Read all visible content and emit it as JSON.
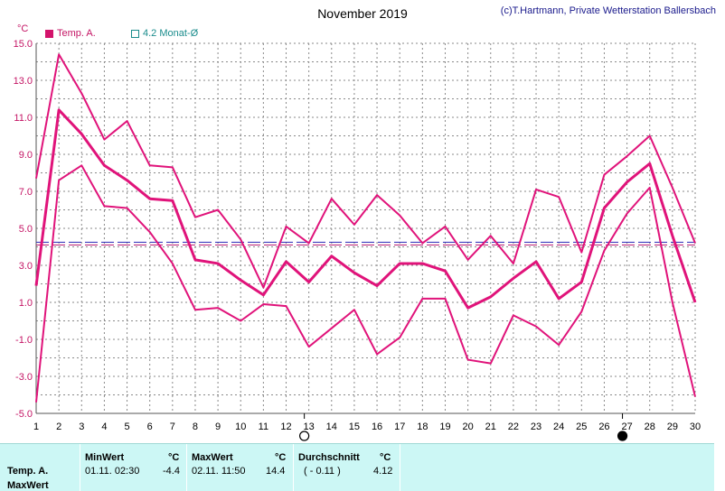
{
  "chart_data": {
    "type": "line",
    "title": "November 2019",
    "credit": "(c)T.Hartmann, Private Wetterstation Ballersbach",
    "ylabel": "°C",
    "ylim": [
      -5.0,
      15.0
    ],
    "yticks": [
      "-5.0",
      "-3.0",
      "-1.0",
      "1.0",
      "3.0",
      "5.0",
      "7.0",
      "9.0",
      "11.0",
      "13.0",
      "15.0"
    ],
    "x": [
      1,
      2,
      3,
      4,
      5,
      6,
      7,
      8,
      9,
      10,
      11,
      12,
      13,
      14,
      15,
      16,
      17,
      18,
      19,
      20,
      21,
      22,
      23,
      24,
      25,
      26,
      27,
      28,
      29,
      30
    ],
    "xticks": [
      "1",
      "2",
      "3",
      "4",
      "5",
      "6",
      "7",
      "8",
      "9",
      "10",
      "11",
      "12",
      "13",
      "14",
      "15",
      "16",
      "17",
      "18",
      "19",
      "20",
      "21",
      "22",
      "23",
      "24",
      "25",
      "26",
      "27",
      "28",
      "29",
      "30"
    ],
    "grid": true,
    "series": [
      {
        "name": "Temp. A.",
        "role": "max",
        "color": "#e0137a",
        "values": [
          7.7,
          14.4,
          12.3,
          9.8,
          10.8,
          8.4,
          8.3,
          5.6,
          6.0,
          4.4,
          1.8,
          5.1,
          4.2,
          6.6,
          5.2,
          6.8,
          5.7,
          4.2,
          5.1,
          3.3,
          4.6,
          3.1,
          7.1,
          6.7,
          3.7,
          7.9,
          8.9,
          10.0,
          7.2,
          4.2
        ]
      },
      {
        "name": "Temp. A.",
        "role": "avg",
        "color": "#e0137a",
        "values": [
          1.9,
          11.4,
          10.1,
          8.4,
          7.6,
          6.6,
          6.5,
          3.3,
          3.1,
          2.2,
          1.4,
          3.2,
          2.1,
          3.5,
          2.6,
          1.9,
          3.1,
          3.1,
          2.7,
          0.7,
          1.3,
          2.3,
          3.2,
          1.2,
          2.1,
          6.1,
          7.5,
          8.5,
          4.6,
          1.0
        ]
      },
      {
        "name": "Temp. A.",
        "role": "min",
        "color": "#e0137a",
        "values": [
          -4.4,
          7.6,
          8.4,
          6.2,
          6.1,
          4.8,
          3.1,
          0.6,
          0.7,
          0.0,
          0.9,
          0.8,
          -1.4,
          -0.4,
          0.6,
          -1.8,
          -0.9,
          1.2,
          1.2,
          -2.1,
          -2.3,
          0.3,
          -0.3,
          -1.3,
          0.5,
          3.8,
          5.8,
          7.2,
          1.0,
          -4.1
        ]
      }
    ],
    "monthly_mean": {
      "label": "4.2 Monat-Ø",
      "value": 4.2,
      "color": "#1a8c8c"
    },
    "moon_phases": [
      {
        "day": 12.8,
        "phase": "full"
      },
      {
        "day": 26.8,
        "phase": "new"
      }
    ]
  },
  "legend": {
    "series_label": "Temp. A.",
    "series_color": "#d3136b",
    "mean_label": "4.2 Monat-Ø",
    "mean_color": "#1a8c8c"
  },
  "table": {
    "row_label_1": "Temp. A.",
    "row_label_2": "MaxWert",
    "min_header": "MinWert",
    "min_unit": "°C",
    "min_when": "01.11.  02:30",
    "min_value": "-4.4",
    "max_header": "MaxWert",
    "max_unit": "°C",
    "max_when": "02.11.  11:50",
    "max_value": "14.4",
    "avg_header": "Durchschnitt",
    "avg_unit": "°C",
    "avg_note": "( - 0.11 )",
    "avg_value": "4.12"
  }
}
